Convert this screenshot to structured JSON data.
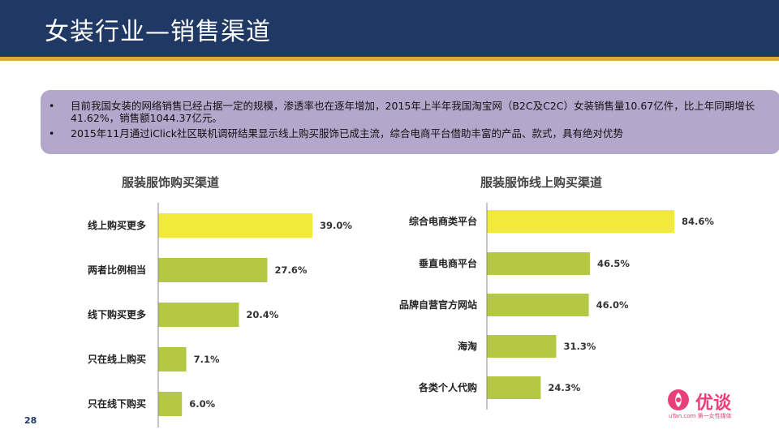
{
  "header": {
    "title": "女装行业—销售渠道"
  },
  "summary": {
    "bullet_symbol": "•",
    "bullets": [
      "目前我国女装的网络销售已经占据一定的规模，渗透率也在逐年增加，2015年上半年我国淘宝网（B2C及C2C）女装销售量10.67亿件，比上年同期增长41.62%，销售额1044.37亿元。",
      "2015年11月通过iClick社区联机调研结果显示线上购买服饰已成主流，综合电商平台借助丰富的产品、款式，具有绝对优势"
    ]
  },
  "chart_data": [
    {
      "type": "bar",
      "orientation": "horizontal",
      "title": "服装服饰购买渠道",
      "categories": [
        "线上购买更多",
        "两者比例相当",
        "线下购买更多",
        "只在线上购买",
        "只在线下购买"
      ],
      "values": [
        39.0,
        27.6,
        20.4,
        7.1,
        6.0
      ],
      "value_labels": [
        "39.0%",
        "27.6%",
        "20.4%",
        "7.1%",
        "6.0%"
      ],
      "highlight_index": 0,
      "xlim": [
        0,
        39.0
      ]
    },
    {
      "type": "bar",
      "orientation": "horizontal",
      "title": "服装服饰线上购买渠道",
      "categories": [
        "综合电商类平台",
        "垂直电商平台",
        "品牌自营官方网站",
        "海淘",
        "各类个人代购"
      ],
      "values": [
        84.6,
        46.5,
        46.0,
        31.3,
        24.3
      ],
      "value_labels": [
        "84.6%",
        "46.5%",
        "46.0%",
        "31.3%",
        "24.3%"
      ],
      "highlight_index": 0,
      "xlim": [
        0,
        84.6
      ]
    }
  ],
  "colors": {
    "header": "#1f3864",
    "stripe": "#d9a93a",
    "summary_bg": "#b4a7cc",
    "bar_highlight": "#f2ea3a",
    "bar_normal": "#b5c844"
  },
  "footer": {
    "page_number": "28"
  },
  "logo": {
    "name": "优谈",
    "sub": "uTan.com 第一女性媒体"
  }
}
